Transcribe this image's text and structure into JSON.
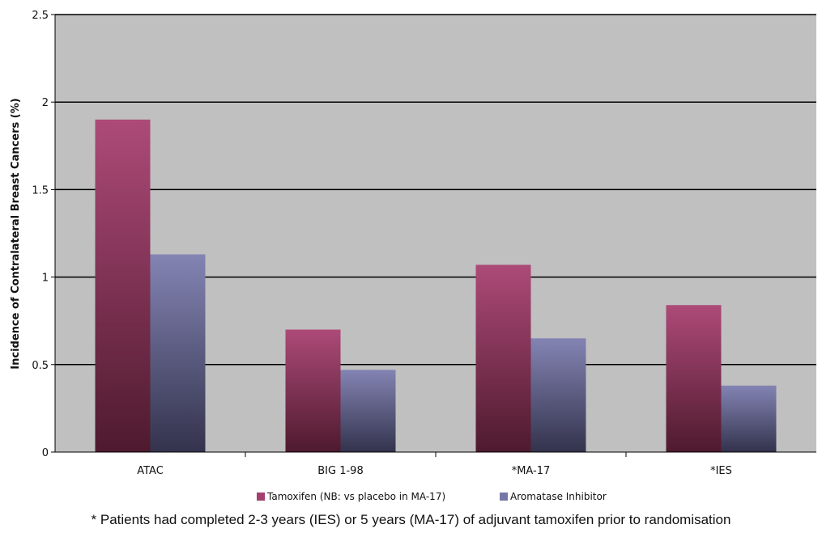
{
  "chart_data": {
    "type": "bar",
    "title": "",
    "xlabel": "",
    "ylabel": "Incidence of Contralateral Breast Cancers (%)",
    "ylim": [
      0,
      2.5
    ],
    "yticks": [
      "0",
      "0.5",
      "1",
      "1.5",
      "2",
      "2.5"
    ],
    "categories": [
      "ATAC",
      "BIG 1-98",
      "*MA-17",
      "*IES"
    ],
    "series": [
      {
        "name": "Tamoxifen (NB: vs placebo in MA-17)",
        "values": [
          1.9,
          0.7,
          1.07,
          0.84
        ],
        "color": "#a3406e"
      },
      {
        "name": "Aromatase Inhibitor",
        "values": [
          1.13,
          0.47,
          0.65,
          0.38
        ],
        "color": "#7878a8"
      }
    ],
    "grid": true,
    "legend_position": "bottom",
    "plot_background": "#c0c0c0"
  },
  "footnote": "* Patients had completed 2-3 years (IES) or 5 years (MA-17) of adjuvant tamoxifen prior to randomisation"
}
